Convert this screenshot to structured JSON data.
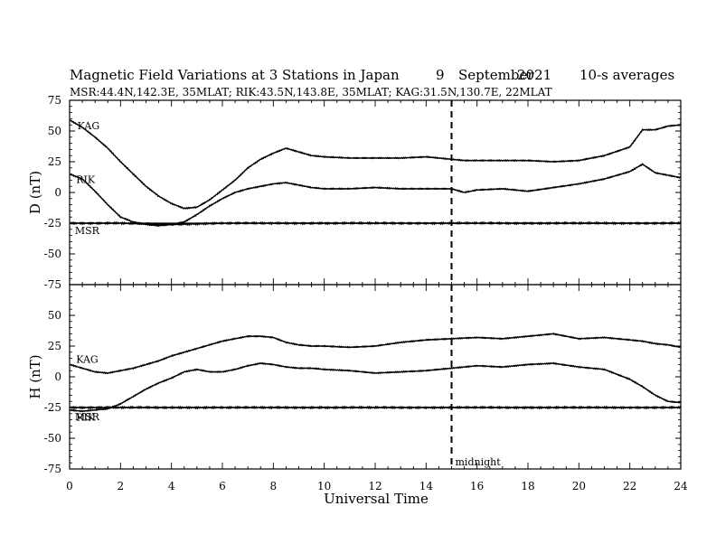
{
  "chart_data": {
    "type": "line",
    "title": {
      "main": "Magnetic Field Variations at 3 Stations in Japan",
      "day": "9",
      "month": "September",
      "year": "2021",
      "averaging": "10-s averages",
      "subtitle": "MSR:44.4N,142.3E, 35MLAT;  RIK:43.5N,143.8E, 35MLAT;  KAG:31.5N,130.7E, 22MLAT"
    },
    "xlabel": "Universal Time",
    "xlim": [
      0,
      24
    ],
    "xticks": [
      0,
      2,
      4,
      6,
      8,
      10,
      12,
      14,
      16,
      18,
      20,
      22,
      24
    ],
    "grid": false,
    "vertical_marker": {
      "x": 15,
      "style": "dashed",
      "label": "midnight"
    },
    "panels": [
      {
        "component": "D",
        "ylabel": "D (nT)",
        "ylim": [
          -75,
          75
        ],
        "yticks": [
          75,
          50,
          25,
          0,
          -25,
          -50,
          -75
        ],
        "reference_line": -25,
        "series": [
          {
            "name": "KAG",
            "x": [
              0,
              0.5,
              1,
              1.5,
              2,
              2.5,
              3,
              3.5,
              4,
              4.5,
              5,
              5.5,
              6,
              6.5,
              7,
              7.5,
              8,
              8.5,
              9,
              9.5,
              10,
              11,
              12,
              13,
              14,
              15,
              15.5,
              16,
              17,
              18,
              19,
              20,
              21,
              22,
              22.5,
              23,
              23.5,
              24
            ],
            "y": [
              59,
              53,
              45,
              36,
              25,
              15,
              5,
              -3,
              -9,
              -13,
              -12,
              -6,
              2,
              10,
              20,
              27,
              32,
              36,
              33,
              30,
              29,
              28,
              28,
              28,
              29,
              27,
              26,
              26,
              26,
              26,
              25,
              26,
              30,
              37,
              51,
              51,
              54,
              55
            ]
          },
          {
            "name": "RIK",
            "x": [
              0,
              0.5,
              1,
              1.5,
              2,
              2.5,
              3,
              3.5,
              4,
              4.5,
              5,
              5.5,
              6,
              6.5,
              7,
              7.5,
              8,
              8.5,
              9,
              9.5,
              10,
              11,
              12,
              13,
              14,
              15,
              15.5,
              16,
              17,
              18,
              19,
              20,
              21,
              22,
              22.5,
              23,
              23.5,
              24
            ],
            "y": [
              15,
              11,
              1,
              -10,
              -20,
              -24,
              -26,
              -27,
              -26,
              -24,
              -18,
              -11,
              -5,
              0,
              3,
              5,
              7,
              8,
              6,
              4,
              3,
              3,
              4,
              3,
              3,
              3,
              0,
              2,
              3,
              1,
              4,
              7,
              11,
              17,
              23,
              16,
              14,
              12
            ]
          },
          {
            "name": "MSR",
            "x": [
              0,
              2,
              4,
              6,
              8,
              10,
              12,
              14,
              16,
              18,
              20,
              22,
              24
            ],
            "y": [
              -25,
              -25,
              -26,
              -25,
              -25,
              -25,
              -25,
              -25,
              -25,
              -25,
              -25,
              -25,
              -25
            ]
          }
        ]
      },
      {
        "component": "H",
        "ylabel": "H (nT)",
        "ylim": [
          -75,
          75
        ],
        "yticks": [
          75,
          50,
          25,
          0,
          -25,
          -50,
          -75
        ],
        "reference_line": -25,
        "series": [
          {
            "name": "KAG",
            "x": [
              0,
              0.5,
              1,
              1.5,
              2,
              2.5,
              3,
              3.5,
              4,
              4.5,
              5,
              5.5,
              6,
              6.5,
              7,
              7.5,
              8,
              8.5,
              9,
              9.5,
              10,
              11,
              12,
              13,
              14,
              15,
              16,
              17,
              18,
              19,
              20,
              21,
              22,
              22.5,
              23,
              23.5,
              24
            ],
            "y": [
              10,
              7,
              4,
              3,
              5,
              7,
              10,
              13,
              17,
              20,
              23,
              26,
              29,
              31,
              33,
              33,
              32,
              28,
              26,
              25,
              25,
              24,
              25,
              28,
              30,
              31,
              32,
              31,
              33,
              35,
              31,
              32,
              30,
              29,
              27,
              26,
              24
            ]
          },
          {
            "name": "RIK",
            "x": [
              0,
              0.5,
              1,
              1.5,
              2,
              2.5,
              3,
              3.5,
              4,
              4.5,
              5,
              5.5,
              6,
              6.5,
              7,
              7.5,
              8,
              8.5,
              9,
              9.5,
              10,
              11,
              12,
              13,
              14,
              15,
              16,
              17,
              18,
              19,
              20,
              21,
              22,
              22.5,
              23,
              23.5,
              24
            ],
            "y": [
              -27,
              -28,
              -27,
              -26,
              -22,
              -16,
              -10,
              -5,
              -1,
              4,
              6,
              4,
              4,
              6,
              9,
              11,
              10,
              8,
              7,
              7,
              6,
              5,
              3,
              4,
              5,
              7,
              9,
              8,
              10,
              11,
              8,
              6,
              -2,
              -8,
              -15,
              -20,
              -21
            ]
          },
          {
            "name": "MSR",
            "x": [
              0,
              2,
              4,
              6,
              8,
              10,
              12,
              14,
              16,
              18,
              20,
              22,
              24
            ],
            "y": [
              -25,
              -25,
              -25,
              -25,
              -25,
              -25,
              -25,
              -25,
              -25,
              -25,
              -25,
              -25,
              -25
            ]
          }
        ]
      }
    ]
  }
}
